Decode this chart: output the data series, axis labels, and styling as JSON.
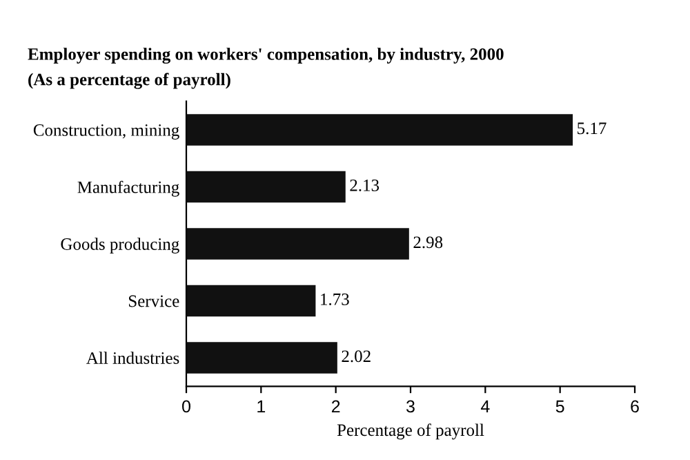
{
  "chart_data": {
    "type": "bar",
    "orientation": "horizontal",
    "title": "Employer spending on workers' compensation, by industry, 2000",
    "subtitle": "(As a percentage of payroll)",
    "xlabel": "Percentage of payroll",
    "categories": [
      "Construction, mining",
      "Manufacturing",
      "Goods producing",
      "Service",
      "All industries"
    ],
    "values": [
      5.17,
      2.13,
      2.98,
      1.73,
      2.02
    ],
    "color": "#111111",
    "xlim": [
      0,
      6
    ],
    "xticks": [
      0,
      1,
      2,
      3,
      4,
      5,
      6
    ],
    "data_labels": true,
    "grid": false,
    "legend": false
  }
}
